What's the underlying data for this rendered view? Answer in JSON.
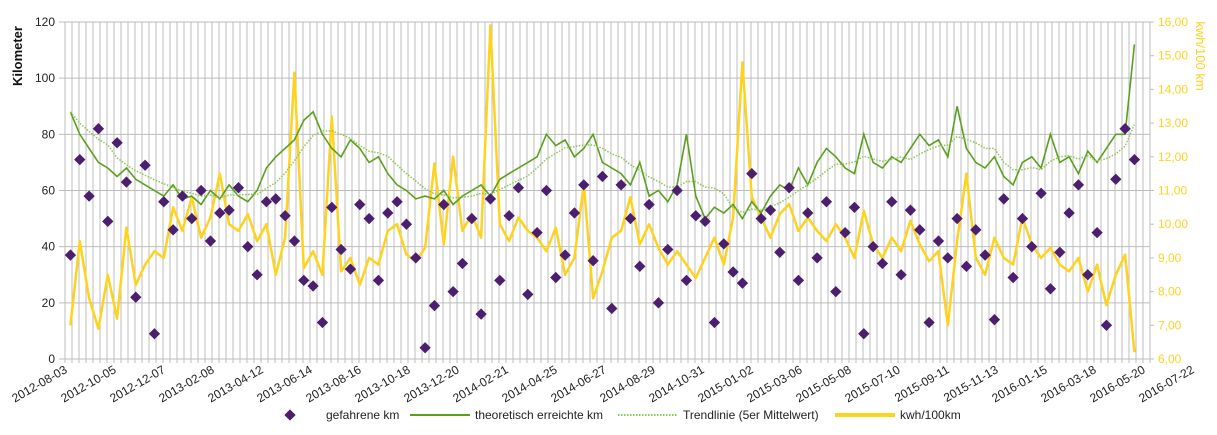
{
  "chart_data": {
    "type": "line",
    "start_date": "2012-08-10",
    "interval_days": 12,
    "x_axis": {
      "ticks": [
        "2012-08-03",
        "2012-10-05",
        "2012-12-07",
        "2013-02-08",
        "2013-04-12",
        "2013-06-14",
        "2013-08-16",
        "2013-10-18",
        "2013-12-20",
        "2014-02-21",
        "2014-04-25",
        "2014-06-27",
        "2014-08-29",
        "2014-10-31",
        "2015-01-02",
        "2015-03-06",
        "2015-05-08",
        "2015-07-10",
        "2015-09-11",
        "2015-11-13",
        "2016-01-15",
        "2016-03-18",
        "2016-05-20",
        "2016-07-22"
      ],
      "tick_interval_days": 63
    },
    "y_left": {
      "label": "Kilometer",
      "ylim": [
        0,
        120
      ],
      "ticks": [
        "0",
        "20",
        "40",
        "60",
        "80",
        "100",
        "120"
      ]
    },
    "y_right": {
      "label": "kwh/100 km",
      "ylim": [
        6,
        16
      ],
      "ticks": [
        "6,00",
        "7,00",
        "8,00",
        "9,00",
        "10,00",
        "11,00",
        "12,00",
        "13,00",
        "14,00",
        "15,00",
        "16,00"
      ]
    },
    "grid": true,
    "legend_position": "bottom",
    "colors": {
      "km": "#4B1E6E",
      "theoretical": "#5AA01E",
      "trend": "#8CC850",
      "kwh": "#FFD21E",
      "grid": "#BDBDBD"
    },
    "series": [
      {
        "name": "gefahrene km",
        "axis": "left",
        "kind": "scatter",
        "values": [
          37,
          71,
          58,
          82,
          49,
          77,
          63,
          22,
          69,
          9,
          56,
          46,
          58,
          50,
          60,
          42,
          52,
          53,
          61,
          40,
          30,
          56,
          57,
          51,
          42,
          28,
          26,
          13,
          54,
          39,
          32,
          55,
          50,
          28,
          52,
          56,
          48,
          36,
          4,
          19,
          55,
          24,
          34,
          50,
          16,
          57,
          28,
          51,
          61,
          23,
          45,
          60,
          29,
          37,
          52,
          62,
          35,
          65,
          18,
          62,
          50,
          33,
          55,
          20,
          39,
          60,
          28,
          51,
          49,
          13,
          41,
          31,
          27,
          66,
          50,
          53,
          38,
          61,
          28,
          52,
          36,
          56,
          24,
          45,
          54,
          9,
          40,
          34,
          56,
          30,
          53,
          46,
          13,
          42,
          36,
          50,
          33,
          46,
          37,
          14,
          57,
          29,
          50,
          40,
          59,
          25,
          38,
          52,
          62,
          30,
          45,
          12,
          64,
          82,
          71
        ]
      },
      {
        "name": "theoretisch erreichte km",
        "axis": "left",
        "kind": "line",
        "values": [
          88,
          80,
          75,
          70,
          68,
          65,
          68,
          64,
          62,
          60,
          58,
          62,
          57,
          58,
          55,
          60,
          57,
          62,
          58,
          56,
          60,
          68,
          72,
          75,
          78,
          85,
          88,
          80,
          75,
          72,
          78,
          75,
          70,
          72,
          66,
          62,
          60,
          57,
          58,
          57,
          60,
          55,
          58,
          60,
          62,
          58,
          64,
          66,
          68,
          70,
          72,
          80,
          76,
          78,
          72,
          75,
          80,
          70,
          68,
          66,
          62,
          70,
          58,
          60,
          56,
          62,
          80,
          58,
          50,
          54,
          52,
          55,
          50,
          56,
          52,
          58,
          62,
          60,
          68,
          62,
          70,
          75,
          72,
          68,
          66,
          80,
          70,
          68,
          72,
          70,
          75,
          80,
          76,
          78,
          72,
          90,
          75,
          70,
          68,
          72,
          65,
          62,
          70,
          72,
          68,
          80,
          70,
          72,
          66,
          74,
          70,
          75,
          80,
          80,
          112
        ]
      },
      {
        "name": "Trendlinie (5er Mittelwert)",
        "axis": "left",
        "kind": "dotted-line",
        "derived_from": "theoretisch erreichte km",
        "window": 5
      },
      {
        "name": "kwh/100km",
        "axis": "right",
        "kind": "line",
        "values": [
          7.0,
          9.5,
          7.8,
          6.9,
          8.5,
          7.2,
          9.9,
          8.2,
          8.8,
          9.2,
          9.0,
          10.5,
          9.8,
          10.8,
          9.6,
          10.2,
          11.5,
          10.0,
          9.8,
          10.3,
          9.5,
          10.0,
          8.5,
          9.6,
          14.5,
          8.7,
          9.2,
          8.5,
          13.2,
          8.6,
          9.0,
          8.2,
          9.0,
          8.8,
          9.8,
          10.0,
          9.1,
          8.9,
          9.3,
          11.8,
          9.4,
          12.0,
          9.8,
          10.3,
          9.6,
          15.9,
          10.0,
          9.5,
          10.2,
          9.8,
          9.6,
          9.2,
          9.9,
          8.5,
          9.0,
          11.2,
          7.8,
          8.6,
          9.6,
          9.8,
          10.8,
          9.4,
          10.0,
          9.3,
          8.8,
          9.2,
          8.8,
          8.4,
          9.0,
          9.6,
          8.8,
          10.2,
          14.8,
          10.8,
          10.2,
          9.6,
          10.3,
          10.6,
          9.8,
          10.2,
          9.8,
          9.5,
          10.0,
          9.6,
          9.0,
          10.4,
          9.4,
          9.0,
          9.6,
          9.2,
          10.1,
          9.4,
          8.9,
          9.2,
          7.0,
          9.5,
          11.5,
          9.0,
          8.5,
          9.6,
          9.0,
          8.8,
          10.2,
          9.4,
          9.0,
          9.3,
          8.8,
          8.6,
          9.0,
          8.0,
          8.8,
          7.6,
          8.5,
          9.1,
          6.2
        ]
      }
    ]
  }
}
